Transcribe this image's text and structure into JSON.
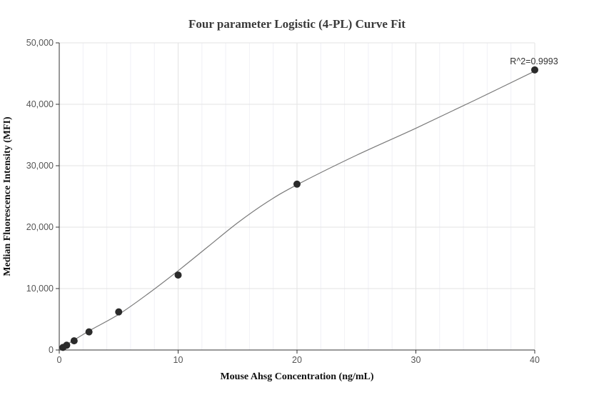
{
  "chart_data": {
    "type": "scatter",
    "title": "Four parameter Logistic (4-PL) Curve Fit",
    "xlabel": "Mouse Ahsg Concentration (ng/mL)",
    "ylabel": "Median Fluorescence Intensity (MFI)",
    "xlim": [
      0,
      40
    ],
    "ylim": [
      0,
      50000
    ],
    "x_ticks": [
      0,
      10,
      20,
      30,
      40
    ],
    "y_ticks": [
      0,
      10000,
      20000,
      30000,
      40000,
      50000
    ],
    "x_tick_labels": [
      "0",
      "10",
      "20",
      "30",
      "40"
    ],
    "y_tick_labels": [
      "0",
      "10,000",
      "20,000",
      "30,000",
      "40,000",
      "50,000"
    ],
    "grid": true,
    "series": [
      {
        "type": "scatter",
        "x": [
          0.3125,
          0.625,
          1.25,
          2.5,
          5,
          10,
          20,
          40
        ],
        "y": [
          420,
          780,
          1500,
          2950,
          6200,
          12200,
          27000,
          45600
        ]
      },
      {
        "type": "line",
        "x": [
          0.3125,
          2.5,
          5,
          7.5,
          10,
          12.5,
          15,
          17.5,
          20,
          25,
          30,
          35,
          40
        ],
        "y": [
          500,
          3100,
          5800,
          9200,
          12900,
          16800,
          20700,
          24100,
          26900,
          31700,
          36100,
          40700,
          45400
        ]
      }
    ],
    "annotation": "R^2=0.9993"
  }
}
